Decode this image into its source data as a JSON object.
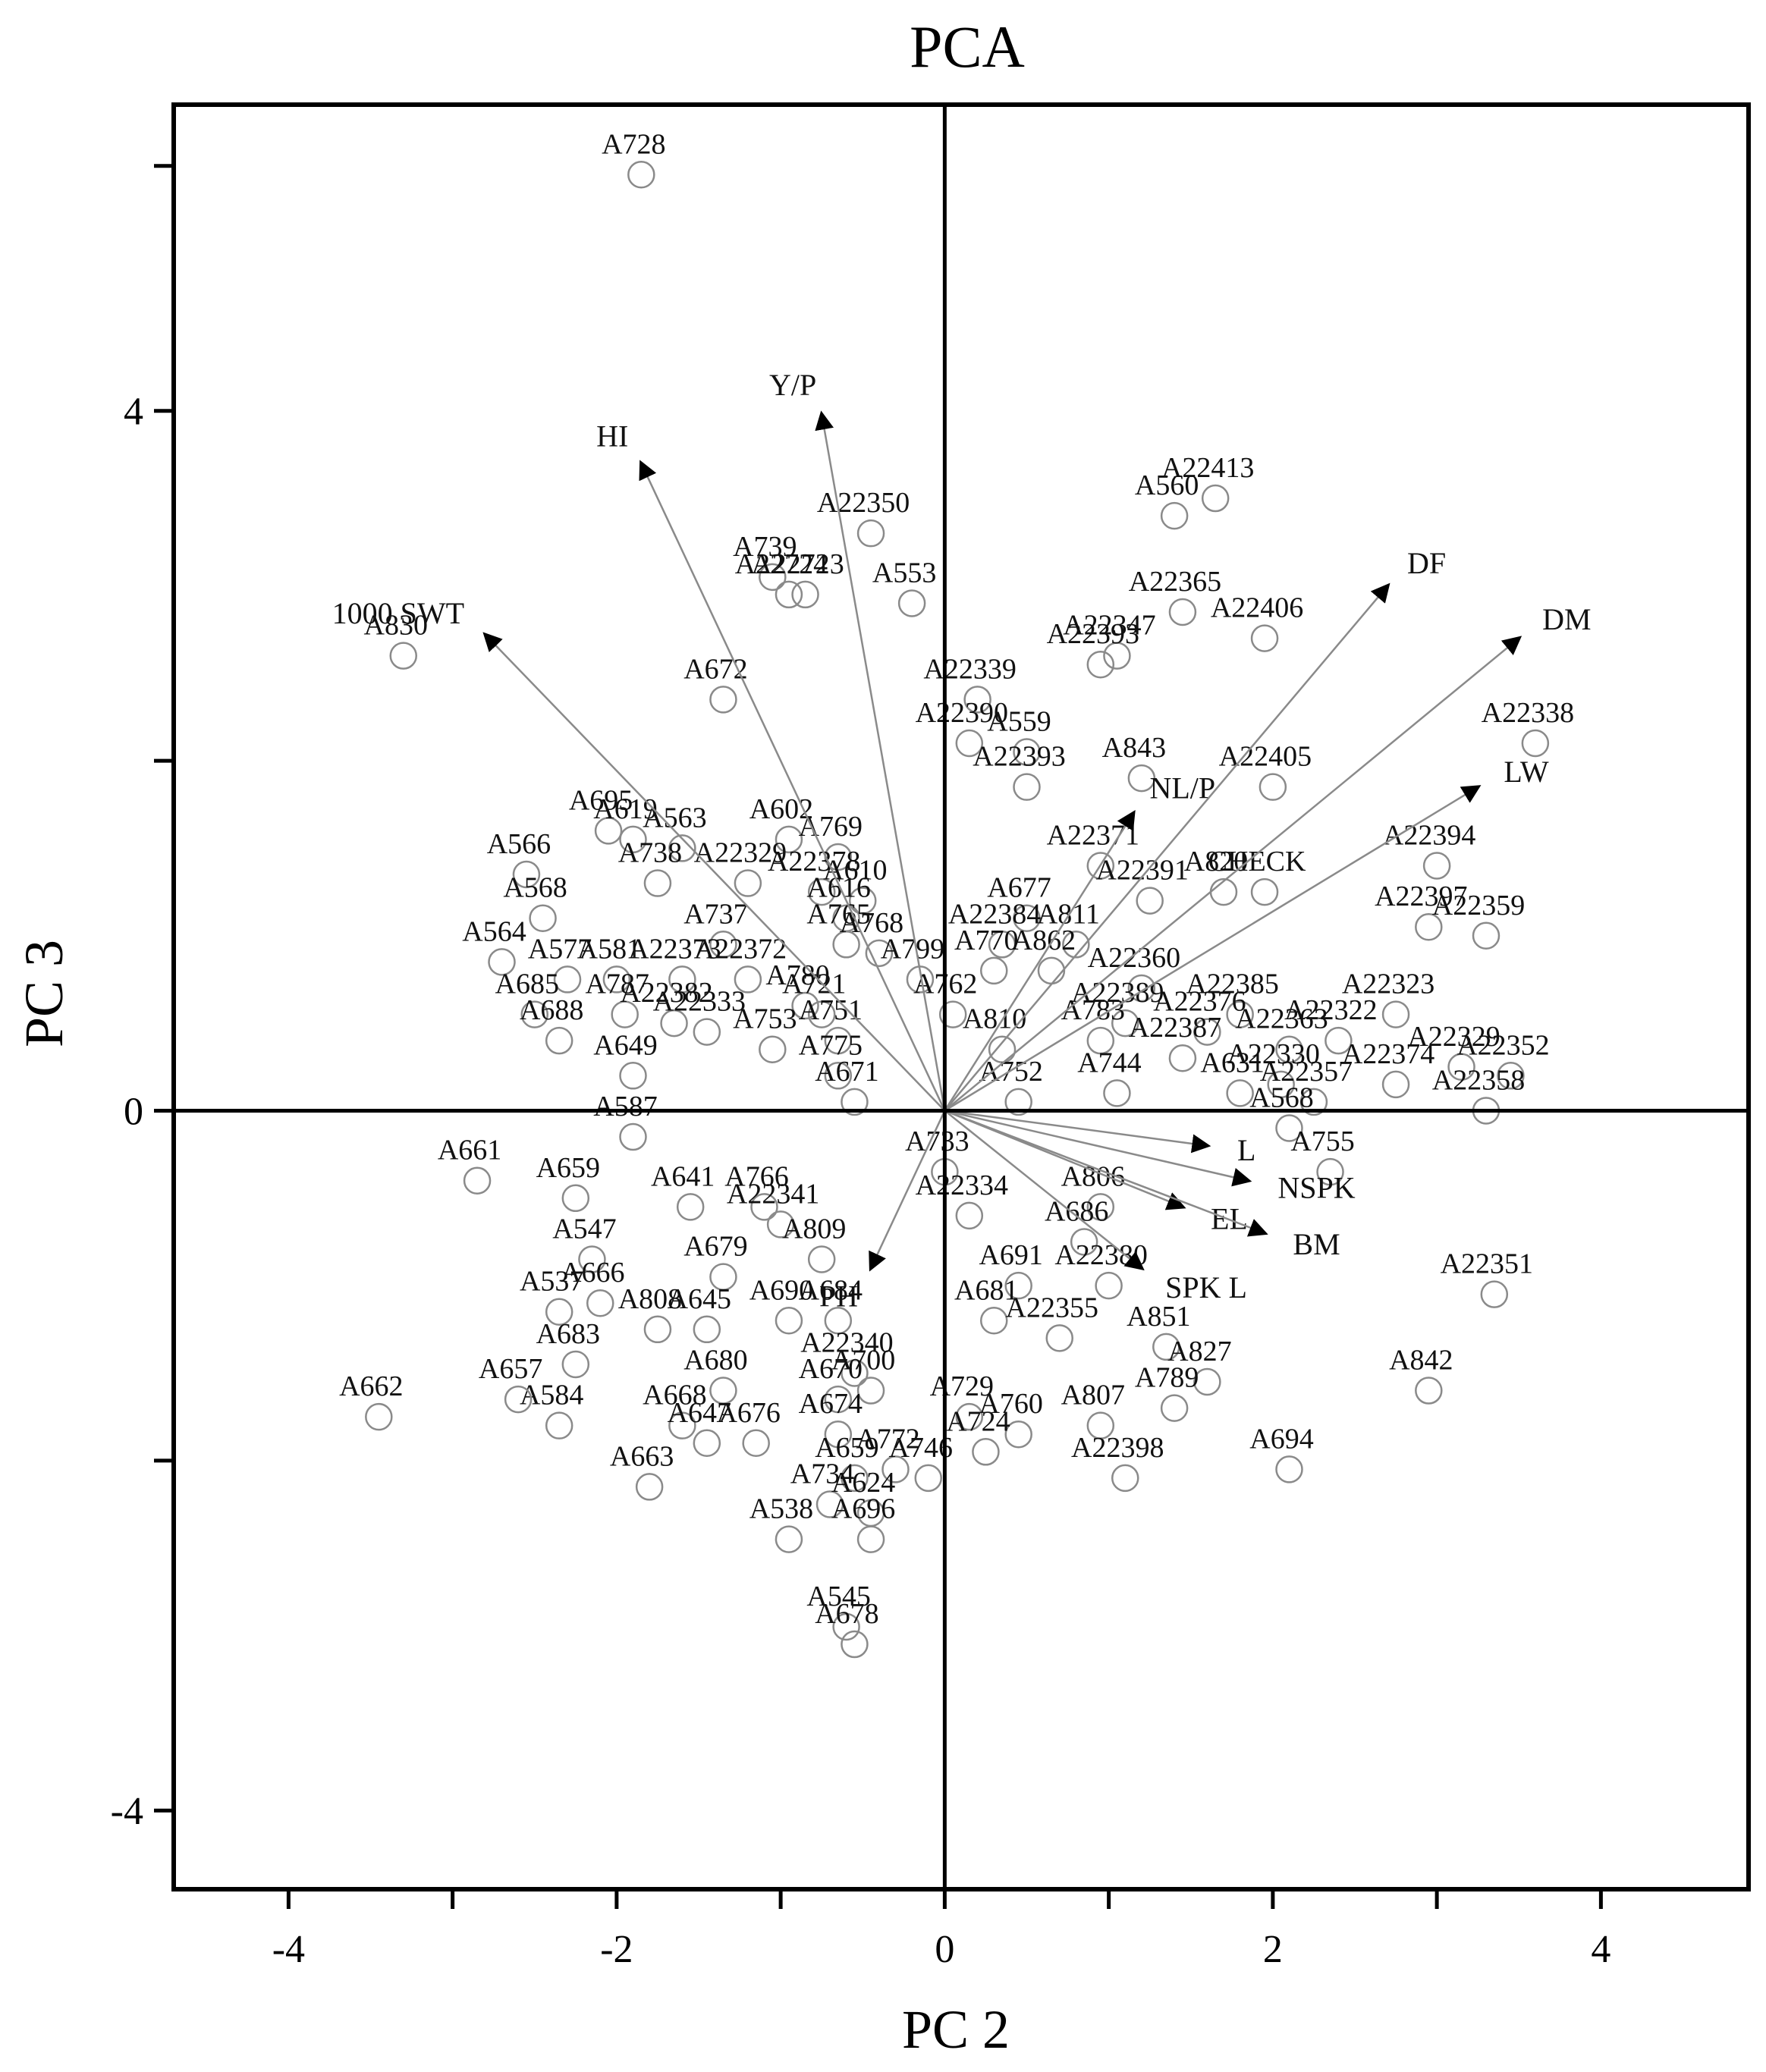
{
  "chart_data": {
    "type": "scatter",
    "subtype": "pca-biplot",
    "title": "PCA",
    "xlabel": "PC 2",
    "ylabel": "PC 3",
    "xlim": [
      -4.7,
      4.9
    ],
    "ylim": [
      -4.45,
      5.75
    ],
    "xticks": [
      -4,
      -2,
      0,
      2,
      4
    ],
    "xminor_ticks": [
      -3,
      -1,
      1,
      3
    ],
    "yticks": [
      -4,
      0,
      4
    ],
    "yminor_ticks": [
      -2,
      2,
      5.4
    ],
    "grid": false,
    "reference_lines": {
      "x": 0,
      "y": 0
    },
    "point_style": "open-circle",
    "vectors": [
      {
        "label": "HI",
        "x": -1.85,
        "y": 3.7
      },
      {
        "label": "Y/P",
        "x": -0.75,
        "y": 3.98
      },
      {
        "label": "1000 SWT",
        "x": -2.8,
        "y": 2.72
      },
      {
        "label": "DF",
        "x": 2.7,
        "y": 3.0
      },
      {
        "label": "DM",
        "x": 3.5,
        "y": 2.7
      },
      {
        "label": "LW",
        "x": 3.25,
        "y": 1.85
      },
      {
        "label": "NL/P",
        "x": 1.15,
        "y": 1.7
      },
      {
        "label": "L",
        "x": 1.6,
        "y": -0.2
      },
      {
        "label": "NSPK",
        "x": 1.85,
        "y": -0.4
      },
      {
        "label": "EL",
        "x": 1.45,
        "y": -0.55
      },
      {
        "label": "BM",
        "x": 1.95,
        "y": -0.7
      },
      {
        "label": "SPK L",
        "x": 1.2,
        "y": -0.9
      },
      {
        "label": "PH",
        "x": -0.45,
        "y": -0.9
      }
    ],
    "points": [
      {
        "label": "A728",
        "x": -1.85,
        "y": 5.35
      },
      {
        "label": "A560",
        "x": 1.4,
        "y": 3.4
      },
      {
        "label": "A22413",
        "x": 1.65,
        "y": 3.5
      },
      {
        "label": "A22350",
        "x": -0.45,
        "y": 3.3
      },
      {
        "label": "A739",
        "x": -1.05,
        "y": 3.05
      },
      {
        "label": "A22724",
        "x": -0.95,
        "y": 2.95
      },
      {
        "label": "A22723",
        "x": -0.85,
        "y": 2.95
      },
      {
        "label": "A553",
        "x": -0.2,
        "y": 2.9
      },
      {
        "label": "A830",
        "x": -3.3,
        "y": 2.6
      },
      {
        "label": "A22365",
        "x": 1.45,
        "y": 2.85
      },
      {
        "label": "A22406",
        "x": 1.95,
        "y": 2.7
      },
      {
        "label": "A22347",
        "x": 1.05,
        "y": 2.6
      },
      {
        "label": "A22393",
        "x": 0.95,
        "y": 2.55
      },
      {
        "label": "A22339",
        "x": 0.2,
        "y": 2.35
      },
      {
        "label": "A22390",
        "x": 0.15,
        "y": 2.1
      },
      {
        "label": "A559",
        "x": 0.5,
        "y": 2.05
      },
      {
        "label": "A22393",
        "x": 0.5,
        "y": 1.85
      },
      {
        "label": "A843",
        "x": 1.2,
        "y": 1.9
      },
      {
        "label": "A22405",
        "x": 2.0,
        "y": 1.85
      },
      {
        "label": "A22338",
        "x": 3.6,
        "y": 2.1
      },
      {
        "label": "A672",
        "x": -1.35,
        "y": 2.35
      },
      {
        "label": "A695",
        "x": -2.05,
        "y": 1.6
      },
      {
        "label": "A619",
        "x": -1.9,
        "y": 1.55
      },
      {
        "label": "A563",
        "x": -1.6,
        "y": 1.5
      },
      {
        "label": "A602",
        "x": -0.95,
        "y": 1.55
      },
      {
        "label": "A769",
        "x": -0.65,
        "y": 1.45
      },
      {
        "label": "A566",
        "x": -2.55,
        "y": 1.35
      },
      {
        "label": "A738",
        "x": -1.75,
        "y": 1.3
      },
      {
        "label": "A22329",
        "x": -1.2,
        "y": 1.3
      },
      {
        "label": "A22378",
        "x": -0.75,
        "y": 1.25
      },
      {
        "label": "A22371",
        "x": 0.95,
        "y": 1.4
      },
      {
        "label": "A820",
        "x": 1.7,
        "y": 1.25
      },
      {
        "label": "CHECK",
        "x": 1.95,
        "y": 1.25
      },
      {
        "label": "A22394",
        "x": 3.0,
        "y": 1.4
      },
      {
        "label": "A22391",
        "x": 1.25,
        "y": 1.2
      },
      {
        "label": "A568",
        "x": -2.45,
        "y": 1.1
      },
      {
        "label": "A610",
        "x": -0.5,
        "y": 1.2
      },
      {
        "label": "A616",
        "x": -0.6,
        "y": 1.1
      },
      {
        "label": "A677",
        "x": 0.5,
        "y": 1.1
      },
      {
        "label": "A22384",
        "x": 0.35,
        "y": 0.95
      },
      {
        "label": "A811",
        "x": 0.8,
        "y": 0.95
      },
      {
        "label": "A22397",
        "x": 2.95,
        "y": 1.05
      },
      {
        "label": "A22359",
        "x": 3.3,
        "y": 1.0
      },
      {
        "label": "A564",
        "x": -2.7,
        "y": 0.85
      },
      {
        "label": "A737",
        "x": -1.35,
        "y": 0.95
      },
      {
        "label": "A577",
        "x": -2.3,
        "y": 0.75
      },
      {
        "label": "A581",
        "x": -2.0,
        "y": 0.75
      },
      {
        "label": "A22373",
        "x": -1.6,
        "y": 0.75
      },
      {
        "label": "A22372",
        "x": -1.2,
        "y": 0.75
      },
      {
        "label": "A765",
        "x": -0.6,
        "y": 0.95
      },
      {
        "label": "A768",
        "x": -0.4,
        "y": 0.9
      },
      {
        "label": "A799",
        "x": -0.15,
        "y": 0.75
      },
      {
        "label": "A770",
        "x": 0.3,
        "y": 0.8
      },
      {
        "label": "A862",
        "x": 0.65,
        "y": 0.8
      },
      {
        "label": "A685",
        "x": -2.5,
        "y": 0.55
      },
      {
        "label": "A22360",
        "x": 1.2,
        "y": 0.7
      },
      {
        "label": "A22385",
        "x": 1.8,
        "y": 0.55
      },
      {
        "label": "A22323",
        "x": 2.75,
        "y": 0.55
      },
      {
        "label": "A787",
        "x": -1.95,
        "y": 0.55
      },
      {
        "label": "A22382",
        "x": -1.65,
        "y": 0.5
      },
      {
        "label": "A780",
        "x": -0.85,
        "y": 0.6
      },
      {
        "label": "A721",
        "x": -0.75,
        "y": 0.55
      },
      {
        "label": "A762",
        "x": 0.05,
        "y": 0.55
      },
      {
        "label": "A22389",
        "x": 1.1,
        "y": 0.5
      },
      {
        "label": "A22376",
        "x": 1.6,
        "y": 0.45
      },
      {
        "label": "A22322",
        "x": 2.4,
        "y": 0.4
      },
      {
        "label": "A688",
        "x": -2.35,
        "y": 0.4
      },
      {
        "label": "A22333",
        "x": -1.45,
        "y": 0.45
      },
      {
        "label": "A751",
        "x": -0.65,
        "y": 0.4
      },
      {
        "label": "A810",
        "x": 0.35,
        "y": 0.35
      },
      {
        "label": "A783",
        "x": 0.95,
        "y": 0.4
      },
      {
        "label": "A22387",
        "x": 1.45,
        "y": 0.3
      },
      {
        "label": "A22363",
        "x": 2.1,
        "y": 0.35
      },
      {
        "label": "A753",
        "x": -1.05,
        "y": 0.35
      },
      {
        "label": "A22330",
        "x": 2.05,
        "y": 0.15
      },
      {
        "label": "A22374",
        "x": 2.75,
        "y": 0.15
      },
      {
        "label": "A22329",
        "x": 3.15,
        "y": 0.25
      },
      {
        "label": "A22352",
        "x": 3.45,
        "y": 0.2
      },
      {
        "label": "A649",
        "x": -1.9,
        "y": 0.2
      },
      {
        "label": "A775",
        "x": -0.65,
        "y": 0.2
      },
      {
        "label": "A744",
        "x": 1.05,
        "y": 0.1
      },
      {
        "label": "A631",
        "x": 1.8,
        "y": 0.1
      },
      {
        "label": "A22357",
        "x": 2.25,
        "y": 0.05
      },
      {
        "label": "A22358",
        "x": 3.3,
        "y": 0.0
      },
      {
        "label": "A661",
        "x": -2.85,
        "y": -0.4
      },
      {
        "label": "A671",
        "x": -0.55,
        "y": 0.05
      },
      {
        "label": "A752",
        "x": 0.45,
        "y": 0.05
      },
      {
        "label": "A568",
        "x": 2.1,
        "y": -0.1
      },
      {
        "label": "A755",
        "x": 2.35,
        "y": -0.35
      },
      {
        "label": "A587",
        "x": -1.9,
        "y": -0.15
      },
      {
        "label": "A733",
        "x": 0.0,
        "y": -0.35
      },
      {
        "label": "A659",
        "x": -2.25,
        "y": -0.5
      },
      {
        "label": "A641",
        "x": -1.55,
        "y": -0.55
      },
      {
        "label": "A766",
        "x": -1.1,
        "y": -0.55
      },
      {
        "label": "A22341",
        "x": -1.0,
        "y": -0.65
      },
      {
        "label": "A22334",
        "x": 0.15,
        "y": -0.6
      },
      {
        "label": "A806",
        "x": 0.95,
        "y": -0.55
      },
      {
        "label": "A686",
        "x": 0.85,
        "y": -0.75
      },
      {
        "label": "A547",
        "x": -2.15,
        "y": -0.85
      },
      {
        "label": "A809",
        "x": -0.75,
        "y": -0.85
      },
      {
        "label": "A679",
        "x": -1.35,
        "y": -0.95
      },
      {
        "label": "A691",
        "x": 0.45,
        "y": -1.0
      },
      {
        "label": "A22380",
        "x": 1.0,
        "y": -1.0
      },
      {
        "label": "A537",
        "x": -2.35,
        "y": -1.15
      },
      {
        "label": "A666",
        "x": -2.1,
        "y": -1.1
      },
      {
        "label": "A690",
        "x": -0.95,
        "y": -1.2
      },
      {
        "label": "A684",
        "x": -0.65,
        "y": -1.2
      },
      {
        "label": "A808",
        "x": -1.75,
        "y": -1.25
      },
      {
        "label": "A645",
        "x": -1.45,
        "y": -1.25
      },
      {
        "label": "A681",
        "x": 0.3,
        "y": -1.2
      },
      {
        "label": "A22355",
        "x": 0.7,
        "y": -1.3
      },
      {
        "label": "A851",
        "x": 1.35,
        "y": -1.35
      },
      {
        "label": "A683",
        "x": -2.25,
        "y": -1.45
      },
      {
        "label": "A22340",
        "x": -0.55,
        "y": -1.5
      },
      {
        "label": "A700",
        "x": -0.45,
        "y": -1.6
      },
      {
        "label": "A827",
        "x": 1.6,
        "y": -1.55
      },
      {
        "label": "A662",
        "x": -3.45,
        "y": -1.75
      },
      {
        "label": "A584",
        "x": -2.35,
        "y": -1.8
      },
      {
        "label": "A680",
        "x": -1.35,
        "y": -1.6
      },
      {
        "label": "A670",
        "x": -0.65,
        "y": -1.65
      },
      {
        "label": "A657",
        "x": -2.6,
        "y": -1.65
      },
      {
        "label": "A668",
        "x": -1.6,
        "y": -1.8
      },
      {
        "label": "A674",
        "x": -0.65,
        "y": -1.85
      },
      {
        "label": "A729",
        "x": 0.15,
        "y": -1.75
      },
      {
        "label": "A807",
        "x": 0.95,
        "y": -1.8
      },
      {
        "label": "A789",
        "x": 1.4,
        "y": -1.7
      },
      {
        "label": "A842",
        "x": 2.95,
        "y": -1.6
      },
      {
        "label": "A22351",
        "x": 3.35,
        "y": -1.05
      },
      {
        "label": "A647",
        "x": -1.45,
        "y": -1.9
      },
      {
        "label": "A676",
        "x": -1.15,
        "y": -1.9
      },
      {
        "label": "A760",
        "x": 0.45,
        "y": -1.85
      },
      {
        "label": "A724",
        "x": 0.25,
        "y": -1.95
      },
      {
        "label": "A22398",
        "x": 1.1,
        "y": -2.1
      },
      {
        "label": "A694",
        "x": 2.1,
        "y": -2.05
      },
      {
        "label": "A663",
        "x": -1.8,
        "y": -2.15
      },
      {
        "label": "A659",
        "x": -0.55,
        "y": -2.1
      },
      {
        "label": "A772",
        "x": -0.3,
        "y": -2.05
      },
      {
        "label": "A746",
        "x": -0.1,
        "y": -2.1
      },
      {
        "label": "A538",
        "x": -0.95,
        "y": -2.45
      },
      {
        "label": "A734",
        "x": -0.7,
        "y": -2.25
      },
      {
        "label": "A624",
        "x": -0.45,
        "y": -2.3
      },
      {
        "label": "A696",
        "x": -0.45,
        "y": -2.45
      },
      {
        "label": "A545",
        "x": -0.6,
        "y": -2.95
      },
      {
        "label": "A678",
        "x": -0.55,
        "y": -3.05
      }
    ]
  }
}
